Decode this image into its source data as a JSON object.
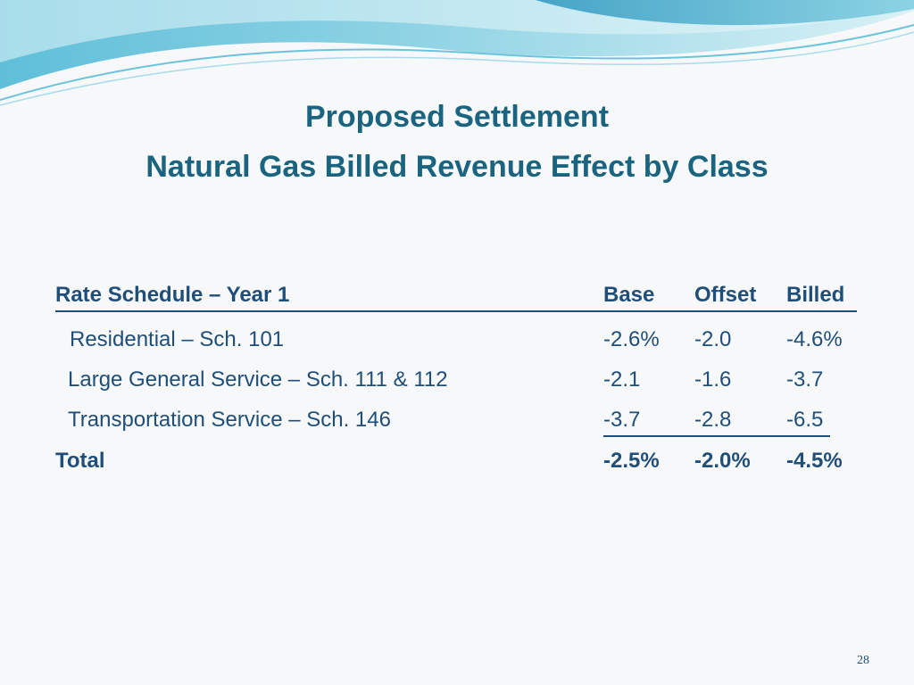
{
  "slide": {
    "title_line1": "Proposed Settlement",
    "title_line2": "Natural Gas Billed Revenue Effect by Class",
    "page_number": "28"
  },
  "table": {
    "header": {
      "label": "Rate Schedule – Year 1",
      "base": "Base",
      "offset": "Offset",
      "billed": "Billed"
    },
    "rows": [
      {
        "label": "Residential – Sch. 101",
        "base": "-2.6%",
        "offset": "-2.0",
        "billed": "-4.6%"
      },
      {
        "label": "Large General Service – Sch. 111 & 112",
        "base": "-2.1",
        "offset": "-1.6",
        "billed": "-3.7"
      },
      {
        "label": "Transportation Service – Sch. 146",
        "base": "-3.7",
        "offset": "-2.8",
        "billed": "-6.5"
      }
    ],
    "total": {
      "label": "Total",
      "base": "-2.5%",
      "offset": "-2.0%",
      "billed": "-4.5%"
    }
  },
  "colors": {
    "title": "#1b6480",
    "body_text": "#1f4e79",
    "background": "#f7f8fa",
    "wave_dark": "#3aa6c9",
    "wave_light": "#bfe6ef"
  }
}
